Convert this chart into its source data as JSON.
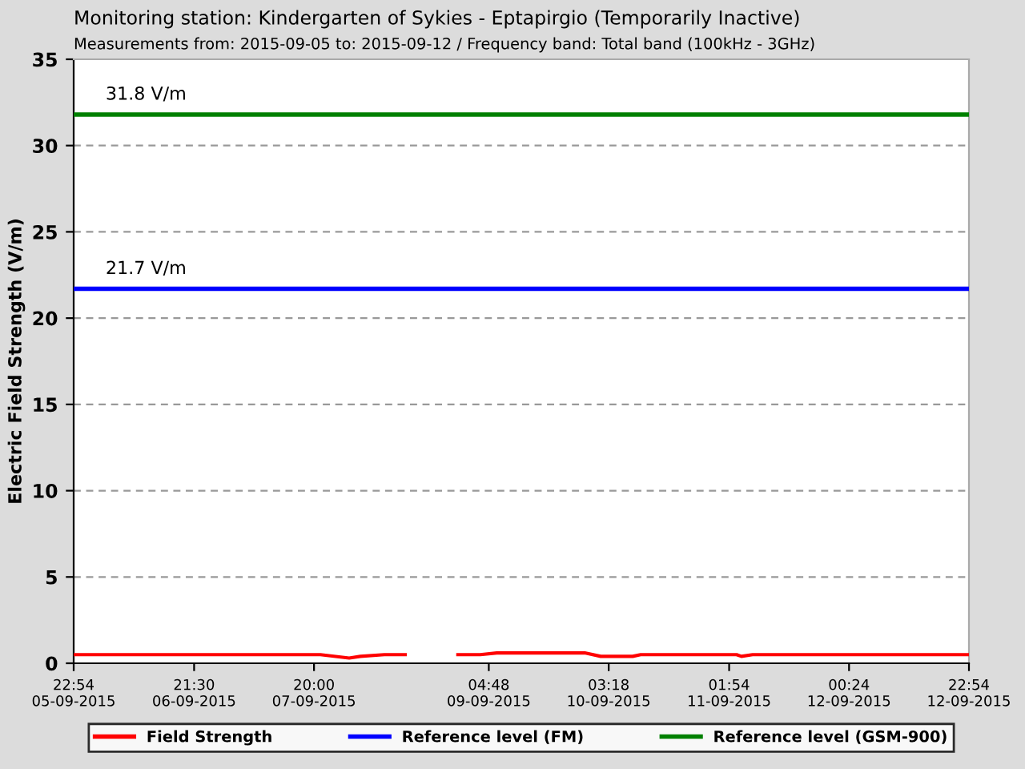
{
  "chart_data": {
    "type": "line",
    "title": "Monitoring station: Kindergarten of Sykies - Eptapirgio (Temporarily Inactive)",
    "subtitle": "Measurements from: 2015-09-05 to: 2015-09-12 / Frequency band: Total band (100kHz - 3GHz)",
    "ylabel": "Electric Field Strength (V/m)",
    "series": [
      {
        "name": "Field Strength",
        "color": "#ff0000",
        "x": [
          "2015-09-05T22:54",
          "2015-09-06T21:06",
          "2015-09-07T21:12",
          "2015-09-08T02:36",
          "2015-09-08T04:42",
          "2015-09-08T09:12",
          "2015-09-08T13:06",
          "2015-09-08T18:12",
          "2015-09-08T23:00",
          "2015-09-09T03:12",
          "2015-09-09T06:18",
          "2015-09-09T22:48",
          "2015-09-10T01:48",
          "2015-09-10T07:48",
          "2015-09-10T09:18",
          "2015-09-11T03:18",
          "2015-09-11T04:12",
          "2015-09-11T06:18",
          "2015-09-12T09:24",
          "2015-09-12T10:54",
          "2015-09-12T13:54",
          "2015-09-12T15:24",
          "2015-09-12T19:54",
          "2015-09-12T22:54"
        ],
        "values": [
          0.5,
          0.5,
          0.5,
          0.3,
          0.4,
          0.5,
          0.5,
          null,
          0.5,
          0.5,
          0.6,
          0.6,
          0.4,
          0.4,
          0.5,
          0.5,
          0.4,
          0.5,
          0.5,
          0.5,
          0.5,
          0.5,
          0.5,
          0.5
        ]
      },
      {
        "name": "Reference level (FM)",
        "color": "#0000ff",
        "x": [
          "2015-09-05T22:54",
          "2015-09-12T22:54"
        ],
        "values": [
          21.7,
          21.7
        ]
      },
      {
        "name": "Reference level (GSM-900)",
        "color": "#008000",
        "x": [
          "2015-09-05T22:54",
          "2015-09-12T22:54"
        ],
        "values": [
          31.8,
          31.8
        ]
      }
    ],
    "annotations": [
      {
        "text": "21.7 V/m",
        "x": "2015-09-06T04:54",
        "y": 21.7
      },
      {
        "text": "31.8 V/m",
        "x": "2015-09-06T04:54",
        "y": 31.8
      }
    ],
    "xlim": [
      "2015-09-05T22:54",
      "2015-09-12T22:54"
    ],
    "xticks": [
      {
        "value": "2015-09-05T22:54",
        "label": "22:54\n05-09-2015"
      },
      {
        "value": "2015-09-06T21:30",
        "label": "21:30\n06-09-2015"
      },
      {
        "value": "2015-09-07T20:00",
        "label": "20:00\n07-09-2015"
      },
      {
        "value": "2015-09-09T04:48",
        "label": "04:48\n09-09-2015"
      },
      {
        "value": "2015-09-10T03:18",
        "label": "03:18\n10-09-2015"
      },
      {
        "value": "2015-09-11T01:54",
        "label": "01:54\n11-09-2015"
      },
      {
        "value": "2015-09-12T00:24",
        "label": "00:24\n12-09-2015"
      },
      {
        "value": "2015-09-12T22:54",
        "label": "22:54\n12-09-2015"
      }
    ],
    "ylim": [
      0,
      35
    ],
    "yticks": [
      0,
      5,
      10,
      15,
      20,
      25,
      30,
      35
    ],
    "grid": "y",
    "legend": "bottom",
    "marker": "none",
    "line_style": "solid"
  }
}
